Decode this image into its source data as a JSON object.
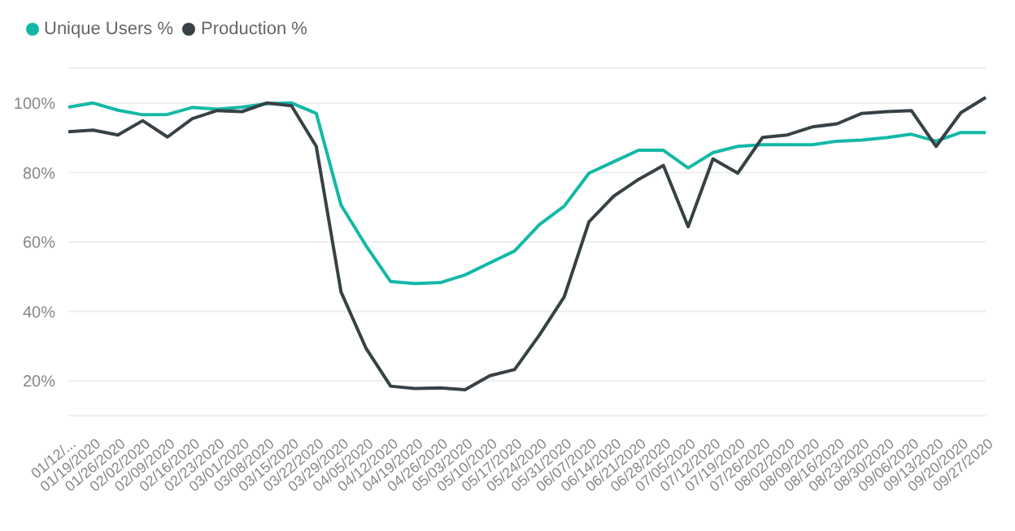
{
  "chart_data": {
    "type": "line",
    "categories": [
      "01/12/...",
      "01/19/2020",
      "01/26/2020",
      "02/02/2020",
      "02/09/2020",
      "02/16/2020",
      "02/23/2020",
      "03/01/2020",
      "03/08/2020",
      "03/15/2020",
      "03/22/2020",
      "03/29/2020",
      "04/05/2020",
      "04/12/2020",
      "04/19/2020",
      "04/26/2020",
      "05/03/2020",
      "05/10/2020",
      "05/17/2020",
      "05/24/2020",
      "05/31/2020",
      "06/07/2020",
      "06/14/2020",
      "06/21/2020",
      "06/28/2020",
      "07/05/2020",
      "07/12/2020",
      "07/19/2020",
      "07/26/2020",
      "08/02/2020",
      "08/09/2020",
      "08/16/2020",
      "08/23/2020",
      "08/30/2020",
      "09/06/2020",
      "09/13/2020",
      "09/20/2020",
      "09/27/2020"
    ],
    "series": [
      {
        "name": "Unique Users %",
        "color": "#14b8a6",
        "values": [
          98.8,
          100,
          97.9,
          96.6,
          96.7,
          98.7,
          98.2,
          98.8,
          99.8,
          100,
          97,
          70.6,
          59,
          48.6,
          48,
          48.3,
          50.5,
          54,
          57.4,
          65,
          70.3,
          79.8,
          83.1,
          86.4,
          86.4,
          81.3,
          85.7,
          87.5,
          88,
          88,
          88,
          89,
          89.3,
          90,
          91,
          89,
          91.5,
          91.5
        ]
      },
      {
        "name": "Production %",
        "color": "#374146",
        "values": [
          91.7,
          92.2,
          90.8,
          94.9,
          90.2,
          95.5,
          97.8,
          97.5,
          100,
          99.2,
          87.5,
          45.6,
          29.5,
          18.5,
          17.8,
          18,
          17.5,
          21.5,
          23.3,
          33.2,
          44.2,
          65.8,
          73.2,
          78,
          82,
          64.4,
          83.9,
          79.8,
          90.1,
          90.8,
          93.1,
          94,
          97,
          97.5,
          97.8,
          87.5,
          97.2,
          101.6
        ]
      }
    ],
    "ylim": [
      10,
      110
    ],
    "yticks": [
      {
        "value": 20,
        "label": "20%"
      },
      {
        "value": 40,
        "label": "40%"
      },
      {
        "value": 60,
        "label": "60%"
      },
      {
        "value": 80,
        "label": "80%"
      },
      {
        "value": 100,
        "label": "100%"
      }
    ],
    "grid": "y",
    "legend": "top left",
    "marker": "none",
    "line_style": "solid"
  }
}
